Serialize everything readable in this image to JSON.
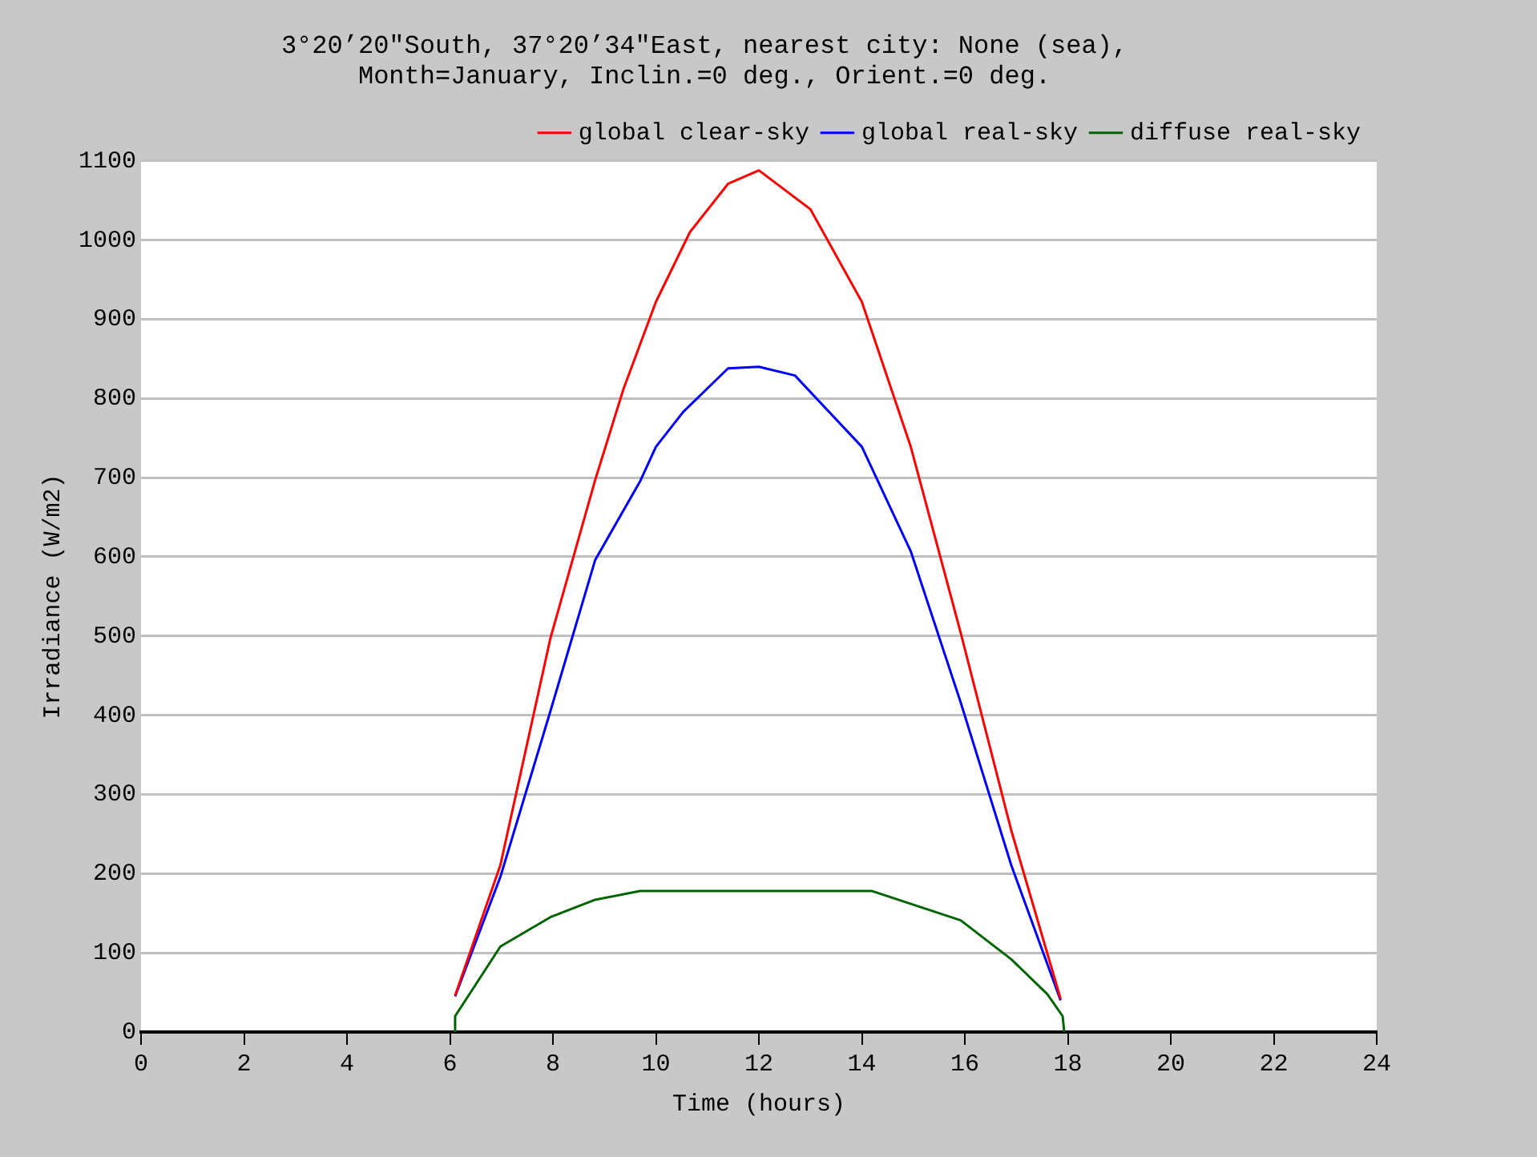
{
  "chart_data": {
    "type": "line",
    "title": [
      "3°20’20\"South, 37°20’34\"East, nearest city: None (sea),",
      "Month=January, Inclin.=0 deg., Orient.=0 deg."
    ],
    "xlabel": "Time (hours)",
    "ylabel": "Irradiance (W/m2)",
    "xlim": [
      0,
      24
    ],
    "xticks": [
      0,
      2,
      4,
      6,
      8,
      10,
      12,
      14,
      16,
      18,
      20,
      22,
      24
    ],
    "ylim": [
      0,
      1100
    ],
    "yticks": [
      0,
      100,
      200,
      300,
      400,
      500,
      600,
      700,
      800,
      900,
      1000,
      1100
    ],
    "grid": "y",
    "legend": "top right",
    "marker": "none",
    "line_style": "solid",
    "series": [
      {
        "name": "global clear-sky",
        "color": "#ff0000",
        "x": [
          6.1,
          6.98,
          7.95,
          8.82,
          9.37,
          10,
          10.66,
          11.4,
          12,
          13,
          14,
          14.95,
          15.92,
          16.9,
          17.86
        ],
        "values": [
          46,
          211,
          497,
          697,
          812,
          922,
          1010,
          1071,
          1088,
          1039,
          922,
          739,
          504,
          255,
          42
        ]
      },
      {
        "name": "global real-sky",
        "color": "#0000ff",
        "x": [
          6.1,
          6.98,
          7.95,
          8.82,
          9.69,
          10,
          10.53,
          11.4,
          12,
          12.7,
          14,
          14.95,
          15.92,
          16.9,
          17.86
        ],
        "values": [
          45,
          196,
          405,
          596,
          695,
          739,
          783,
          838,
          840,
          829,
          739,
          607,
          416,
          211,
          40
        ]
      },
      {
        "name": "diffuse real-sky",
        "color": "#006400",
        "x": [
          6.07,
          6.1,
          6.98,
          7.95,
          8.82,
          9.69,
          10,
          12,
          14,
          14.2,
          15.92,
          16.9,
          17.6,
          17.9,
          17.93
        ],
        "values": [
          0,
          20,
          108,
          145,
          167,
          178,
          178,
          178,
          178,
          178,
          141,
          92,
          48,
          20,
          0
        ]
      }
    ]
  }
}
